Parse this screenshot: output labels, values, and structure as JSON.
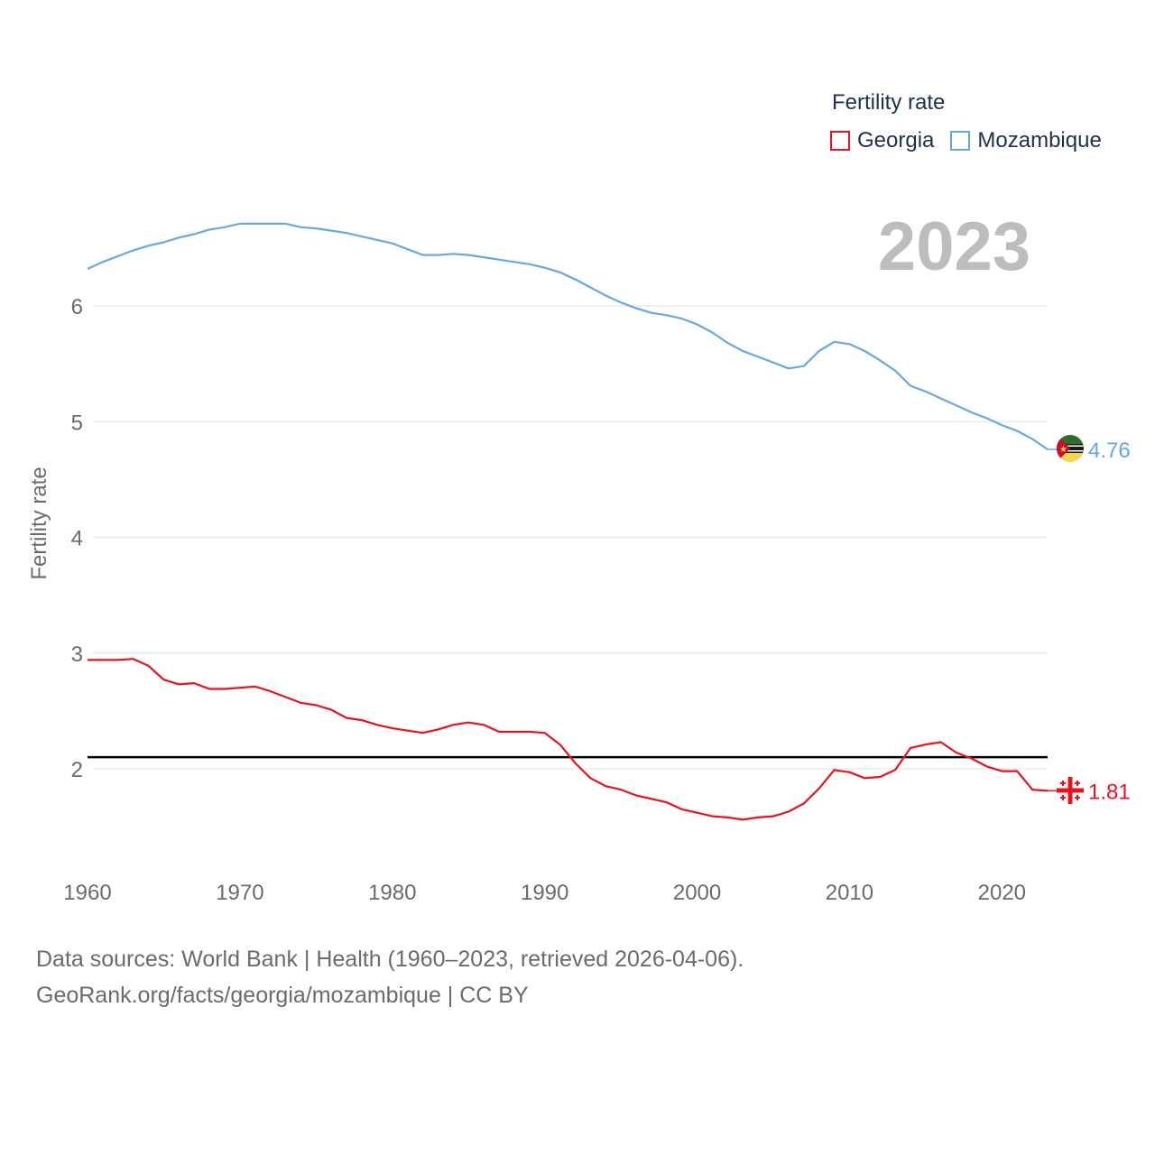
{
  "chart_data": {
    "type": "line",
    "title": "",
    "ylabel": "Fertility rate",
    "xlabel": "",
    "xlim": [
      1960,
      2023
    ],
    "ylim": [
      1.2,
      7.2
    ],
    "x_ticks": [
      1960,
      1970,
      1980,
      1990,
      2000,
      2010,
      2020
    ],
    "y_ticks": [
      2,
      3,
      4,
      5,
      6
    ],
    "reference_line": 2.1,
    "grid": true,
    "legend_title": "Fertility rate",
    "legend_position": "top-right",
    "current_year": "2023",
    "series": [
      {
        "name": "Georgia",
        "color": "#e8131b",
        "end_label": "1.81",
        "x": [
          1960,
          1961,
          1962,
          1963,
          1964,
          1965,
          1966,
          1967,
          1968,
          1969,
          1970,
          1971,
          1972,
          1973,
          1974,
          1975,
          1976,
          1977,
          1978,
          1979,
          1980,
          1981,
          1982,
          1983,
          1984,
          1985,
          1986,
          1987,
          1988,
          1989,
          1990,
          1991,
          1992,
          1993,
          1994,
          1995,
          1996,
          1997,
          1998,
          1999,
          2000,
          2001,
          2002,
          2003,
          2004,
          2005,
          2006,
          2007,
          2008,
          2009,
          2010,
          2011,
          2012,
          2013,
          2014,
          2015,
          2016,
          2017,
          2018,
          2019,
          2020,
          2021,
          2022,
          2023
        ],
        "values": [
          2.94,
          2.94,
          2.94,
          2.95,
          2.89,
          2.77,
          2.73,
          2.74,
          2.69,
          2.69,
          2.7,
          2.71,
          2.67,
          2.62,
          2.57,
          2.55,
          2.51,
          2.44,
          2.42,
          2.38,
          2.35,
          2.33,
          2.31,
          2.34,
          2.38,
          2.4,
          2.38,
          2.32,
          2.32,
          2.32,
          2.31,
          2.21,
          2.05,
          1.92,
          1.85,
          1.82,
          1.77,
          1.74,
          1.71,
          1.65,
          1.62,
          1.59,
          1.58,
          1.56,
          1.58,
          1.59,
          1.63,
          1.7,
          1.83,
          1.99,
          1.97,
          1.92,
          1.93,
          1.99,
          2.18,
          2.21,
          2.23,
          2.14,
          2.09,
          2.02,
          1.98,
          1.98,
          1.82,
          1.81
        ]
      },
      {
        "name": "Mozambique",
        "color": "#64a9e6",
        "end_label": "4.76",
        "x": [
          1960,
          1961,
          1962,
          1963,
          1964,
          1965,
          1966,
          1967,
          1968,
          1969,
          1970,
          1971,
          1972,
          1973,
          1974,
          1975,
          1976,
          1977,
          1978,
          1979,
          1980,
          1981,
          1982,
          1983,
          1984,
          1985,
          1986,
          1987,
          1988,
          1989,
          1990,
          1991,
          1992,
          1993,
          1994,
          1995,
          1996,
          1997,
          1998,
          1999,
          2000,
          2001,
          2002,
          2003,
          2004,
          2005,
          2006,
          2007,
          2008,
          2009,
          2010,
          2011,
          2012,
          2013,
          2014,
          2015,
          2016,
          2017,
          2018,
          2019,
          2020,
          2021,
          2022,
          2023
        ],
        "values": [
          6.32,
          6.38,
          6.43,
          6.48,
          6.52,
          6.55,
          6.59,
          6.62,
          6.66,
          6.68,
          6.71,
          6.71,
          6.71,
          6.71,
          6.68,
          6.67,
          6.65,
          6.63,
          6.6,
          6.57,
          6.54,
          6.49,
          6.44,
          6.44,
          6.45,
          6.44,
          6.42,
          6.4,
          6.38,
          6.36,
          6.33,
          6.29,
          6.23,
          6.16,
          6.09,
          6.03,
          5.98,
          5.94,
          5.92,
          5.89,
          5.84,
          5.77,
          5.68,
          5.61,
          5.56,
          5.51,
          5.46,
          5.48,
          5.61,
          5.69,
          5.67,
          5.61,
          5.53,
          5.44,
          5.31,
          5.26,
          5.2,
          5.14,
          5.08,
          5.03,
          4.97,
          4.92,
          4.85,
          4.76
        ]
      }
    ]
  },
  "footer": {
    "line1": "Data sources: World Bank | Health (1960–2023, retrieved 2026-04-06).",
    "line2": "GeoRank.org/facts/georgia/mozambique | CC BY"
  }
}
